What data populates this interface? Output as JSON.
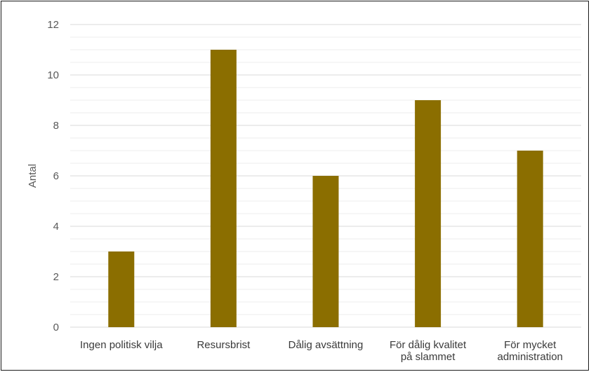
{
  "chart_data": {
    "type": "bar",
    "categories": [
      [
        "Ingen politisk vilja"
      ],
      [
        "Resursbrist"
      ],
      [
        "Dålig avsättning"
      ],
      [
        "För dålig kvalitet",
        "på slammet"
      ],
      [
        "För mycket",
        "administration"
      ]
    ],
    "values": [
      3,
      11,
      6,
      9,
      7
    ],
    "title": "",
    "xlabel": "",
    "ylabel": "Antal",
    "ylim": [
      0,
      12
    ],
    "yticks": [
      0,
      2,
      4,
      6,
      8,
      10,
      12
    ],
    "minor_step": 0.5,
    "grid": true,
    "legend": "none",
    "colors": {
      "bar": "#8B6E00",
      "major_grid": "#d9d9d9",
      "minor_grid": "#eeeeee",
      "baseline": "#d9d9d9"
    }
  }
}
